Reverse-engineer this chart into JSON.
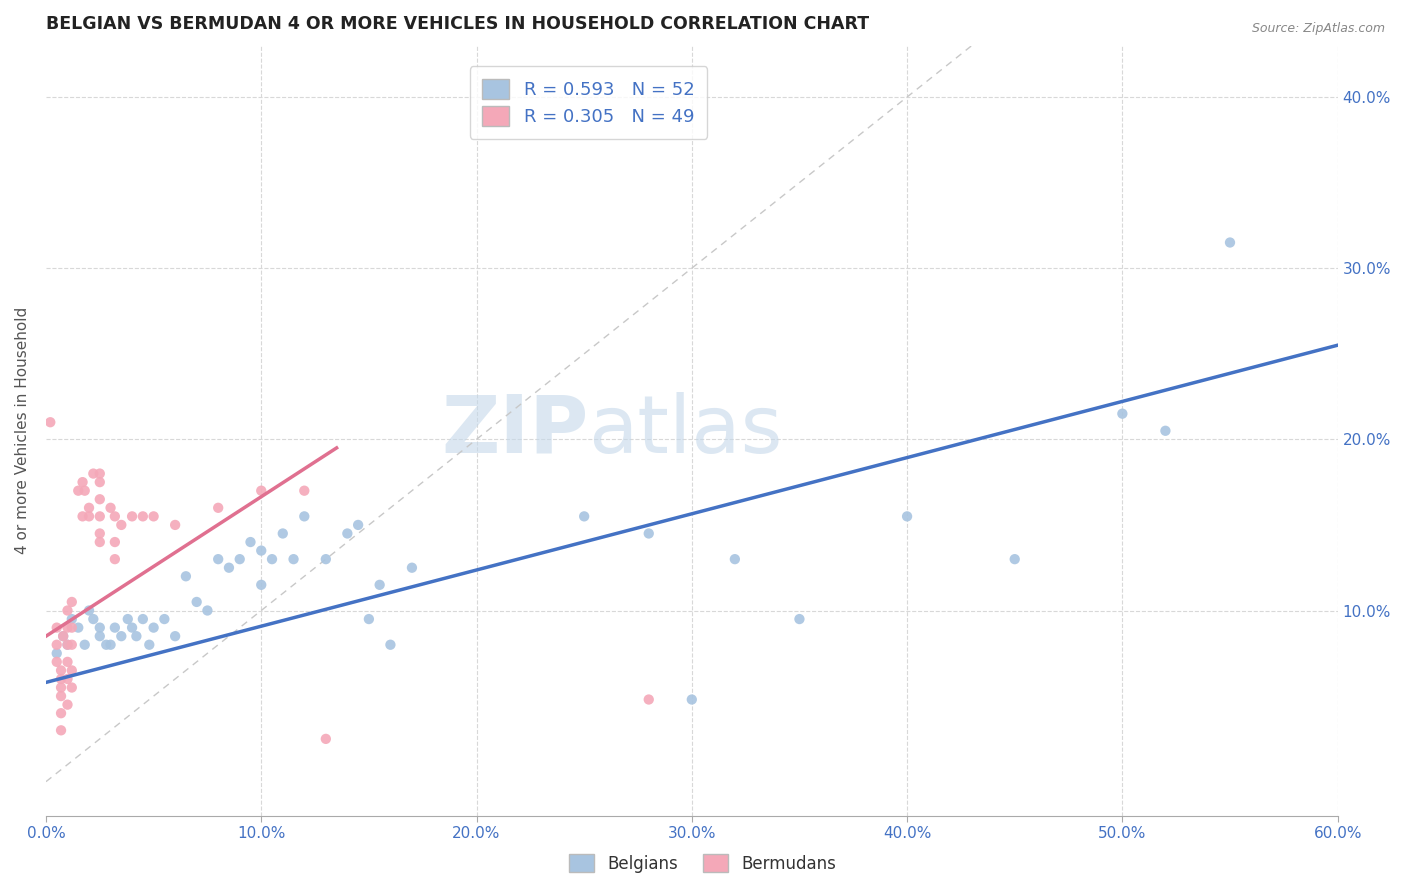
{
  "title": "BELGIAN VS BERMUDAN 4 OR MORE VEHICLES IN HOUSEHOLD CORRELATION CHART",
  "source": "Source: ZipAtlas.com",
  "ylabel": "4 or more Vehicles in Household",
  "legend_belgian": "R = 0.593   N = 52",
  "legend_bermudan": "R = 0.305   N = 49",
  "watermark_bold": "ZIP",
  "watermark_light": "atlas",
  "belgian_color": "#a8c4e0",
  "bermudan_color": "#f4a8b8",
  "belgian_line_color": "#4472c4",
  "bermudan_line_color": "#e07090",
  "diagonal_color": "#c8c8c8",
  "xlim": [
    0.0,
    0.6
  ],
  "ylim": [
    -0.02,
    0.43
  ],
  "belgian_scatter": [
    [
      0.005,
      0.075
    ],
    [
      0.008,
      0.085
    ],
    [
      0.01,
      0.08
    ],
    [
      0.012,
      0.095
    ],
    [
      0.015,
      0.09
    ],
    [
      0.018,
      0.08
    ],
    [
      0.02,
      0.1
    ],
    [
      0.022,
      0.095
    ],
    [
      0.025,
      0.09
    ],
    [
      0.025,
      0.085
    ],
    [
      0.028,
      0.08
    ],
    [
      0.03,
      0.08
    ],
    [
      0.032,
      0.09
    ],
    [
      0.035,
      0.085
    ],
    [
      0.038,
      0.095
    ],
    [
      0.04,
      0.09
    ],
    [
      0.042,
      0.085
    ],
    [
      0.045,
      0.095
    ],
    [
      0.048,
      0.08
    ],
    [
      0.05,
      0.09
    ],
    [
      0.055,
      0.095
    ],
    [
      0.06,
      0.085
    ],
    [
      0.065,
      0.12
    ],
    [
      0.07,
      0.105
    ],
    [
      0.075,
      0.1
    ],
    [
      0.08,
      0.13
    ],
    [
      0.085,
      0.125
    ],
    [
      0.09,
      0.13
    ],
    [
      0.095,
      0.14
    ],
    [
      0.1,
      0.135
    ],
    [
      0.1,
      0.115
    ],
    [
      0.105,
      0.13
    ],
    [
      0.11,
      0.145
    ],
    [
      0.115,
      0.13
    ],
    [
      0.12,
      0.155
    ],
    [
      0.13,
      0.13
    ],
    [
      0.14,
      0.145
    ],
    [
      0.145,
      0.15
    ],
    [
      0.15,
      0.095
    ],
    [
      0.155,
      0.115
    ],
    [
      0.16,
      0.08
    ],
    [
      0.17,
      0.125
    ],
    [
      0.25,
      0.155
    ],
    [
      0.28,
      0.145
    ],
    [
      0.3,
      0.048
    ],
    [
      0.32,
      0.13
    ],
    [
      0.35,
      0.095
    ],
    [
      0.4,
      0.155
    ],
    [
      0.45,
      0.13
    ],
    [
      0.5,
      0.215
    ],
    [
      0.52,
      0.205
    ],
    [
      0.55,
      0.315
    ]
  ],
  "bermudan_scatter": [
    [
      0.002,
      0.21
    ],
    [
      0.005,
      0.09
    ],
    [
      0.005,
      0.08
    ],
    [
      0.005,
      0.07
    ],
    [
      0.007,
      0.065
    ],
    [
      0.007,
      0.06
    ],
    [
      0.007,
      0.055
    ],
    [
      0.007,
      0.05
    ],
    [
      0.007,
      0.04
    ],
    [
      0.007,
      0.03
    ],
    [
      0.008,
      0.085
    ],
    [
      0.01,
      0.1
    ],
    [
      0.01,
      0.09
    ],
    [
      0.01,
      0.08
    ],
    [
      0.01,
      0.07
    ],
    [
      0.01,
      0.06
    ],
    [
      0.01,
      0.045
    ],
    [
      0.012,
      0.105
    ],
    [
      0.012,
      0.09
    ],
    [
      0.012,
      0.08
    ],
    [
      0.012,
      0.065
    ],
    [
      0.012,
      0.055
    ],
    [
      0.015,
      0.17
    ],
    [
      0.017,
      0.175
    ],
    [
      0.017,
      0.155
    ],
    [
      0.018,
      0.17
    ],
    [
      0.02,
      0.16
    ],
    [
      0.02,
      0.155
    ],
    [
      0.022,
      0.18
    ],
    [
      0.025,
      0.18
    ],
    [
      0.025,
      0.175
    ],
    [
      0.025,
      0.165
    ],
    [
      0.025,
      0.155
    ],
    [
      0.025,
      0.145
    ],
    [
      0.025,
      0.14
    ],
    [
      0.03,
      0.16
    ],
    [
      0.032,
      0.155
    ],
    [
      0.032,
      0.14
    ],
    [
      0.032,
      0.13
    ],
    [
      0.035,
      0.15
    ],
    [
      0.04,
      0.155
    ],
    [
      0.045,
      0.155
    ],
    [
      0.05,
      0.155
    ],
    [
      0.06,
      0.15
    ],
    [
      0.08,
      0.16
    ],
    [
      0.1,
      0.17
    ],
    [
      0.12,
      0.17
    ],
    [
      0.13,
      0.025
    ],
    [
      0.28,
      0.048
    ]
  ],
  "belgian_trend": [
    0.0,
    0.6,
    0.058,
    0.255
  ],
  "bermudan_trend_x": [
    0.0,
    0.135
  ],
  "bermudan_trend_y": [
    0.085,
    0.195
  ]
}
